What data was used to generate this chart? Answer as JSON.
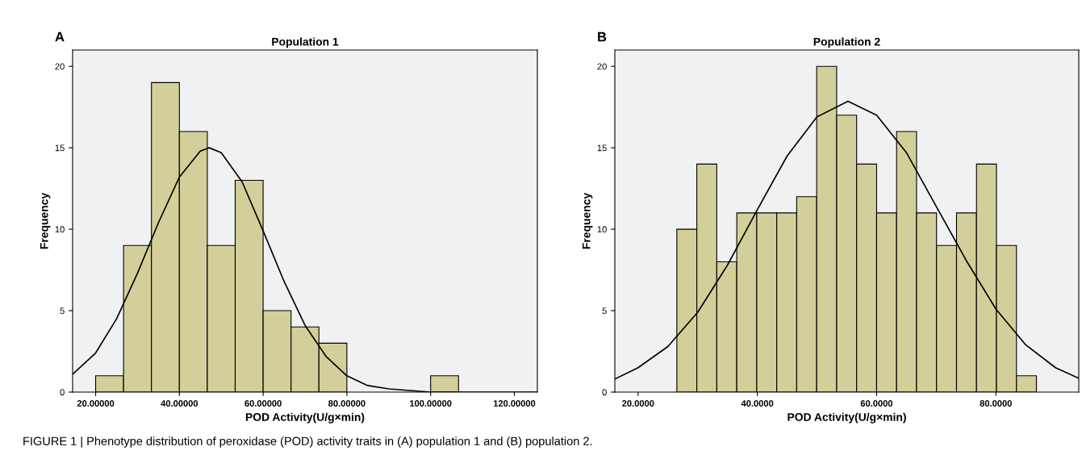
{
  "chart_data": [
    {
      "type": "histogram",
      "title": "Population 1",
      "xlabel": "POD Activity(U/g×min)",
      "ylabel": "Frequency",
      "color": "#d3cf9a",
      "bins": [
        20,
        26.67,
        33.33,
        40,
        46.67,
        53.33,
        60,
        66.67,
        73.33,
        80,
        86.67,
        93.33,
        100,
        106.67
      ],
      "values": [
        1,
        9,
        19,
        16,
        9,
        13,
        5,
        4,
        3,
        0,
        0,
        0,
        1
      ],
      "series": [
        {
          "type": "line",
          "color": "#000000",
          "x": [
            14.5,
            20,
            25,
            30,
            35,
            40,
            45,
            47.1,
            50,
            55,
            60,
            65,
            70,
            75,
            80,
            85,
            90,
            95,
            100,
            105,
            125.5
          ],
          "values": [
            1.1,
            2.4,
            4.5,
            7.3,
            10.4,
            13.2,
            14.8,
            15,
            14.7,
            12.9,
            9.9,
            6.8,
            4.1,
            2.2,
            1.0,
            0.4,
            0.2,
            0.1,
            0,
            0,
            0
          ]
        }
      ],
      "xlim": [
        14.5,
        125.5
      ],
      "xticks": [
        {
          "value": 20,
          "label": "20.00000"
        },
        {
          "value": 40,
          "label": "40.00000"
        },
        {
          "value": 60,
          "label": "60.00000"
        },
        {
          "value": 80,
          "label": "80.00000"
        },
        {
          "value": 100,
          "label": "100.00000"
        },
        {
          "value": 120,
          "label": "120.00000"
        }
      ],
      "ylim": [
        0,
        21
      ],
      "yticks": [
        0,
        5,
        10,
        15,
        20
      ],
      "grid": false,
      "annotations": [
        "A",
        "FIGURE 1 | Phenotype distribution of peroxidase (POD) activity traits in (A) population 1 and (B) population 2."
      ]
    },
    {
      "type": "histogram",
      "title": "Population 2",
      "xlabel": "POD Activity(U/g×min)",
      "ylabel": "Frequency",
      "color": "#d3cf9a",
      "bins": [
        26.5,
        29.85,
        33.2,
        36.55,
        39.9,
        43.25,
        46.6,
        49.95,
        53.3,
        56.65,
        60.0,
        63.35,
        66.7,
        70.05,
        73.4,
        76.75,
        80.1,
        83.45,
        86.8
      ],
      "values": [
        10,
        14,
        8,
        11,
        11,
        11,
        12,
        20,
        17,
        14,
        11,
        16,
        11,
        9,
        11,
        14,
        9,
        1
      ],
      "series": [
        {
          "type": "line",
          "color": "#000000",
          "x": [
            16.1,
            20,
            25,
            30,
            35,
            40,
            45,
            50,
            55.2,
            60,
            65,
            70,
            75,
            80,
            85,
            90,
            93.9
          ],
          "values": [
            0.8,
            1.5,
            2.8,
            4.9,
            7.8,
            11.2,
            14.5,
            16.9,
            17.85,
            17.0,
            14.7,
            11.4,
            8.1,
            5.1,
            2.9,
            1.5,
            0.85
          ]
        }
      ],
      "xlim": [
        16.1,
        93.9
      ],
      "xticks": [
        {
          "value": 20,
          "label": "20.0000"
        },
        {
          "value": 40,
          "label": "40.0000"
        },
        {
          "value": 60,
          "label": "60.0000"
        },
        {
          "value": 80,
          "label": "80.0000"
        }
      ],
      "ylim": [
        0,
        21
      ],
      "yticks": [
        0,
        5,
        10,
        15,
        20
      ],
      "grid": false,
      "annotations": [
        "B"
      ]
    }
  ]
}
